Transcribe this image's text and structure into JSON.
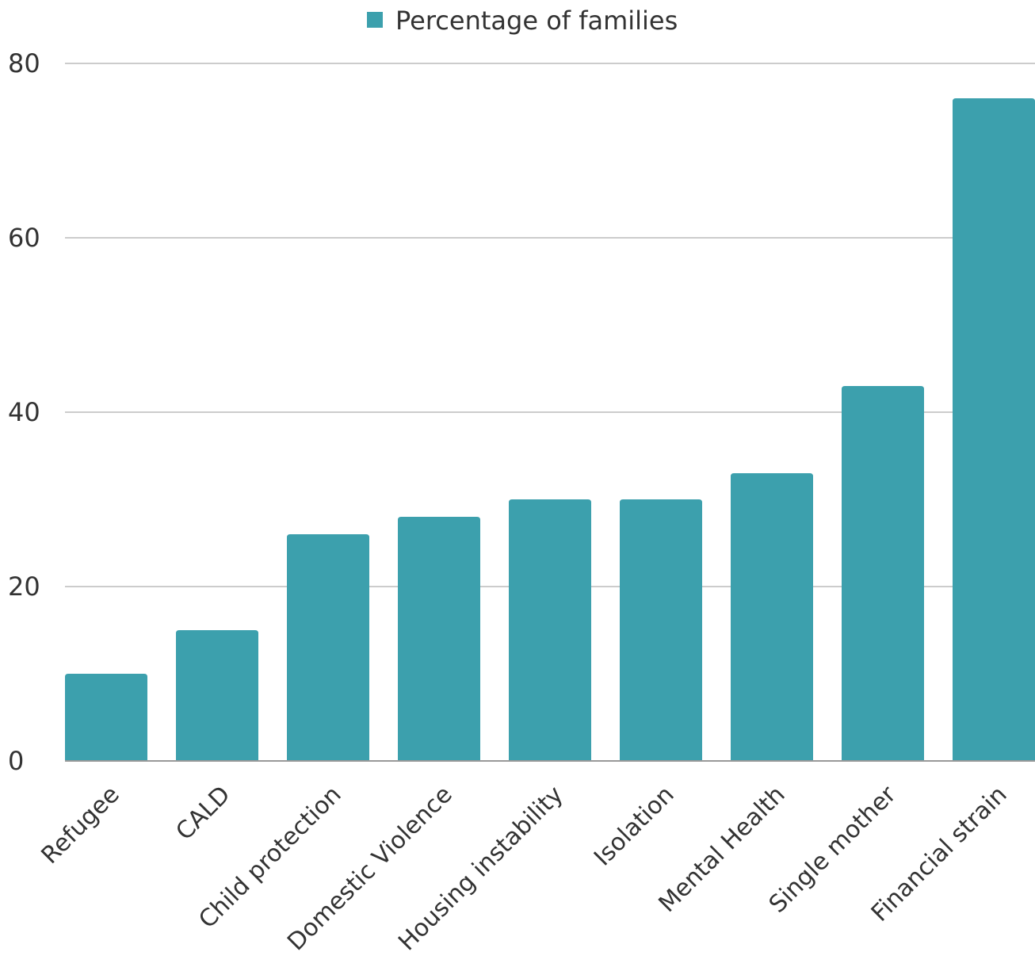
{
  "chart_data": {
    "type": "bar",
    "categories": [
      "Refugee",
      "CALD",
      "Child protection",
      "Domestic Violence",
      "Housing instability",
      "Isolation",
      "Mental Health",
      "Single mother",
      "Financial strain"
    ],
    "series": [
      {
        "name": "Percentage of families",
        "values": [
          10,
          15,
          26,
          28,
          30,
          30,
          33,
          43,
          76
        ],
        "color": "#3ca0ad"
      }
    ],
    "xlabel": "",
    "ylabel": "",
    "ylim": [
      0,
      80
    ],
    "yticks": [
      "0",
      "20",
      "40",
      "60",
      "80"
    ],
    "grid": true,
    "legend_position": "top-center"
  }
}
